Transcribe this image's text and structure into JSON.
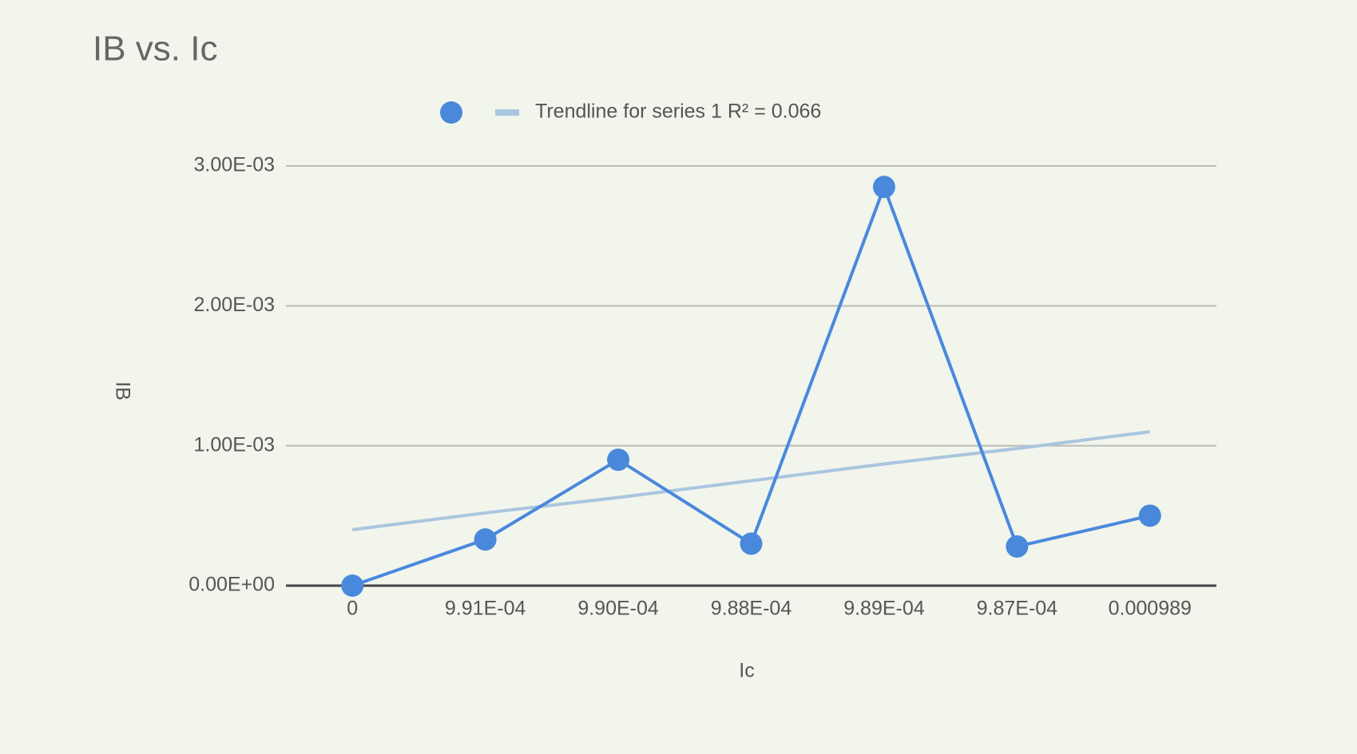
{
  "chart_data": {
    "type": "line",
    "title": "IB vs. Ic",
    "x_label": "Ic",
    "y_label": "IB",
    "categories": [
      "0",
      "9.91E-04",
      "9.90E-04",
      "9.88E-04",
      "9.89E-04",
      "9.87E-04",
      "0.000989"
    ],
    "series": [
      {
        "color": "#4a88dc",
        "values": [
          0,
          0.00033,
          0.0009,
          0.0003,
          0.00285,
          0.00028,
          0.0005
        ]
      },
      {
        "name": "Trendline for series 1 R² = 0.066",
        "color": "#a9c6df",
        "values": [
          0.0004,
          0.00052,
          0.00063,
          0.00075,
          0.00087,
          0.00098,
          0.0011
        ]
      }
    ],
    "ylim": [
      0,
      0.003
    ],
    "yticks": [
      {
        "value": 0,
        "label": "0.00E+00"
      },
      {
        "value": 0.001,
        "label": "1.00E-03"
      },
      {
        "value": 0.002,
        "label": "2.00E-03"
      },
      {
        "value": 0.003,
        "label": "3.00E-03"
      }
    ],
    "grid": true
  }
}
